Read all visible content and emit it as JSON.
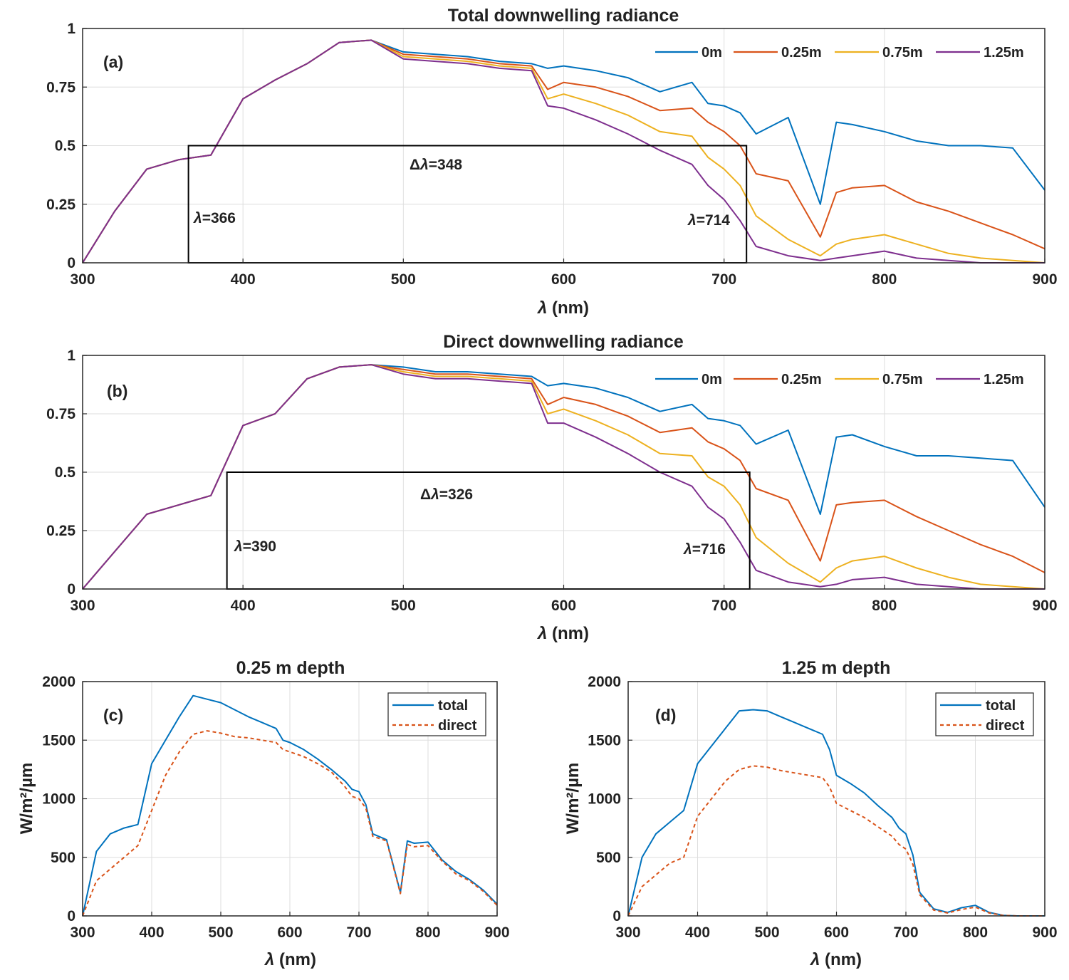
{
  "colors": {
    "c0m": "#0072BD",
    "c025": "#D95319",
    "c075": "#EDB120",
    "c125": "#7E2F8E"
  },
  "panels": {
    "a": {
      "title": "Total downwelling radiance",
      "label": "(a)",
      "xlabel_prefix": "λ",
      "xlabel_unit": " (nm)",
      "legend": [
        "0m",
        "0.25m",
        "0.75m",
        "1.25m"
      ],
      "yticks": [
        "0",
        "0.25",
        "0.5",
        "0.75",
        "1"
      ],
      "xticks": [
        "300",
        "400",
        "500",
        "600",
        "700",
        "800",
        "900"
      ],
      "ann_left_sym": "λ",
      "ann_left_val": "=366",
      "ann_right_sym": "λ",
      "ann_right_val": "=714",
      "ann_delta": "Δ",
      "ann_delta_sym": "λ",
      "ann_delta_val": "=348"
    },
    "b": {
      "title": "Direct downwelling radiance",
      "label": "(b)",
      "xlabel_prefix": "λ",
      "xlabel_unit": " (nm)",
      "legend": [
        "0m",
        "0.25m",
        "0.75m",
        "1.25m"
      ],
      "yticks": [
        "0",
        "0.25",
        "0.5",
        "0.75",
        "1"
      ],
      "xticks": [
        "300",
        "400",
        "500",
        "600",
        "700",
        "800",
        "900"
      ],
      "ann_left_sym": "λ",
      "ann_left_val": "=390",
      "ann_right_sym": "λ",
      "ann_right_val": "=716",
      "ann_delta": "Δ",
      "ann_delta_sym": "λ",
      "ann_delta_val": "=326"
    },
    "c": {
      "title": "0.25 m depth",
      "label": "(c)",
      "xlabel_prefix": "λ",
      "xlabel_unit": " (nm)",
      "ylabel": "W/m²/µm",
      "legend": [
        "total",
        "direct"
      ],
      "yticks": [
        "0",
        "500",
        "1000",
        "1500",
        "2000"
      ],
      "xticks": [
        "300",
        "400",
        "500",
        "600",
        "700",
        "800",
        "900"
      ]
    },
    "d": {
      "title": "1.25 m depth",
      "label": "(d)",
      "xlabel_prefix": "λ",
      "xlabel_unit": " (nm)",
      "ylabel": "W/m²/µm",
      "legend": [
        "total",
        "direct"
      ],
      "yticks": [
        "0",
        "500",
        "1000",
        "1500",
        "2000"
      ],
      "xticks": [
        "300",
        "400",
        "500",
        "600",
        "700",
        "800",
        "900"
      ]
    }
  },
  "chart_data": [
    {
      "type": "line",
      "panel": "a",
      "title": "Total downwelling radiance",
      "xlabel": "λ (nm)",
      "ylabel": "",
      "xlim": [
        300,
        900
      ],
      "ylim": [
        0,
        1
      ],
      "grid": true,
      "legend_position": "top-right",
      "x": [
        300,
        320,
        340,
        360,
        380,
        400,
        420,
        440,
        460,
        480,
        500,
        520,
        540,
        560,
        580,
        590,
        600,
        620,
        640,
        660,
        680,
        690,
        700,
        710,
        720,
        740,
        760,
        770,
        780,
        800,
        820,
        840,
        860,
        880,
        900
      ],
      "series": [
        {
          "name": "0m",
          "values": [
            0,
            0.22,
            0.4,
            0.44,
            0.46,
            0.7,
            0.78,
            0.85,
            0.94,
            0.95,
            0.9,
            0.89,
            0.88,
            0.86,
            0.85,
            0.83,
            0.84,
            0.82,
            0.79,
            0.73,
            0.77,
            0.68,
            0.67,
            0.64,
            0.55,
            0.62,
            0.25,
            0.6,
            0.59,
            0.56,
            0.52,
            0.5,
            0.5,
            0.49,
            0.31
          ]
        },
        {
          "name": "0.25m",
          "values": [
            0,
            0.22,
            0.4,
            0.44,
            0.46,
            0.7,
            0.78,
            0.85,
            0.94,
            0.95,
            0.89,
            0.88,
            0.87,
            0.85,
            0.84,
            0.74,
            0.77,
            0.75,
            0.71,
            0.65,
            0.66,
            0.6,
            0.56,
            0.5,
            0.38,
            0.35,
            0.11,
            0.3,
            0.32,
            0.33,
            0.26,
            0.22,
            0.17,
            0.12,
            0.06
          ]
        },
        {
          "name": "0.75m",
          "values": [
            0,
            0.22,
            0.4,
            0.44,
            0.46,
            0.7,
            0.78,
            0.85,
            0.94,
            0.95,
            0.88,
            0.87,
            0.86,
            0.84,
            0.83,
            0.7,
            0.72,
            0.68,
            0.63,
            0.56,
            0.54,
            0.45,
            0.4,
            0.33,
            0.2,
            0.1,
            0.03,
            0.08,
            0.1,
            0.12,
            0.08,
            0.04,
            0.02,
            0.01,
            0
          ]
        },
        {
          "name": "1.25m",
          "values": [
            0,
            0.22,
            0.4,
            0.44,
            0.46,
            0.7,
            0.78,
            0.85,
            0.94,
            0.95,
            0.87,
            0.86,
            0.85,
            0.83,
            0.82,
            0.67,
            0.66,
            0.61,
            0.55,
            0.48,
            0.42,
            0.33,
            0.27,
            0.18,
            0.07,
            0.03,
            0.01,
            0.02,
            0.03,
            0.05,
            0.02,
            0.01,
            0,
            0,
            0
          ]
        }
      ],
      "annotations": [
        {
          "text": "λ=366",
          "x": 366
        },
        {
          "text": "λ=714",
          "x": 714
        },
        {
          "text": "Δλ=348",
          "x": 540,
          "y": 0.42
        }
      ],
      "rectangle": {
        "x0": 366,
        "x1": 714,
        "y0": 0,
        "y1": 0.5
      }
    },
    {
      "type": "line",
      "panel": "b",
      "title": "Direct downwelling radiance",
      "xlabel": "λ (nm)",
      "ylabel": "",
      "xlim": [
        300,
        900
      ],
      "ylim": [
        0,
        1
      ],
      "grid": true,
      "legend_position": "top-right",
      "x": [
        300,
        320,
        340,
        360,
        380,
        400,
        420,
        440,
        460,
        480,
        500,
        520,
        540,
        560,
        580,
        590,
        600,
        620,
        640,
        660,
        680,
        690,
        700,
        710,
        720,
        740,
        760,
        770,
        780,
        800,
        820,
        840,
        860,
        880,
        900
      ],
      "series": [
        {
          "name": "0m",
          "values": [
            0,
            0.16,
            0.32,
            0.36,
            0.4,
            0.7,
            0.75,
            0.9,
            0.95,
            0.96,
            0.95,
            0.93,
            0.93,
            0.92,
            0.91,
            0.87,
            0.88,
            0.86,
            0.82,
            0.76,
            0.79,
            0.73,
            0.72,
            0.7,
            0.62,
            0.68,
            0.32,
            0.65,
            0.66,
            0.61,
            0.57,
            0.57,
            0.56,
            0.55,
            0.35
          ]
        },
        {
          "name": "0.25m",
          "values": [
            0,
            0.16,
            0.32,
            0.36,
            0.4,
            0.7,
            0.75,
            0.9,
            0.95,
            0.96,
            0.94,
            0.92,
            0.92,
            0.91,
            0.9,
            0.79,
            0.82,
            0.79,
            0.74,
            0.67,
            0.69,
            0.63,
            0.6,
            0.55,
            0.43,
            0.38,
            0.12,
            0.36,
            0.37,
            0.38,
            0.31,
            0.25,
            0.19,
            0.14,
            0.07
          ]
        },
        {
          "name": "0.75m",
          "values": [
            0,
            0.16,
            0.32,
            0.36,
            0.4,
            0.7,
            0.75,
            0.9,
            0.95,
            0.96,
            0.93,
            0.91,
            0.91,
            0.9,
            0.89,
            0.75,
            0.77,
            0.72,
            0.66,
            0.58,
            0.57,
            0.48,
            0.44,
            0.36,
            0.22,
            0.11,
            0.03,
            0.09,
            0.12,
            0.14,
            0.09,
            0.05,
            0.02,
            0.01,
            0
          ]
        },
        {
          "name": "1.25m",
          "values": [
            0,
            0.16,
            0.32,
            0.36,
            0.4,
            0.7,
            0.75,
            0.9,
            0.95,
            0.96,
            0.92,
            0.9,
            0.9,
            0.89,
            0.88,
            0.71,
            0.71,
            0.65,
            0.58,
            0.5,
            0.44,
            0.35,
            0.3,
            0.2,
            0.08,
            0.03,
            0.01,
            0.02,
            0.04,
            0.05,
            0.02,
            0.01,
            0,
            0,
            0
          ]
        }
      ],
      "annotations": [
        {
          "text": "λ=390",
          "x": 390
        },
        {
          "text": "λ=716",
          "x": 716
        },
        {
          "text": "Δλ=326",
          "x": 550,
          "y": 0.4
        }
      ],
      "rectangle": {
        "x0": 390,
        "x1": 716,
        "y0": 0,
        "y1": 0.5
      }
    },
    {
      "type": "line",
      "panel": "c",
      "title": "0.25 m depth",
      "xlabel": "λ (nm)",
      "ylabel": "W/m²/µm",
      "xlim": [
        300,
        900
      ],
      "ylim": [
        0,
        2000
      ],
      "grid": true,
      "legend_position": "top-right",
      "x": [
        300,
        320,
        340,
        360,
        380,
        400,
        420,
        440,
        460,
        480,
        500,
        520,
        540,
        560,
        580,
        590,
        600,
        620,
        640,
        660,
        680,
        690,
        700,
        710,
        720,
        740,
        760,
        770,
        780,
        800,
        820,
        840,
        860,
        880,
        900
      ],
      "series": [
        {
          "name": "total",
          "values": [
            0,
            550,
            700,
            750,
            780,
            1300,
            1500,
            1700,
            1880,
            1850,
            1820,
            1760,
            1700,
            1650,
            1600,
            1500,
            1480,
            1420,
            1340,
            1250,
            1150,
            1080,
            1060,
            950,
            700,
            650,
            200,
            640,
            620,
            630,
            480,
            380,
            310,
            220,
            100
          ]
        },
        {
          "name": "direct",
          "values": [
            0,
            300,
            400,
            500,
            600,
            900,
            1200,
            1400,
            1550,
            1580,
            1560,
            1530,
            1520,
            1500,
            1480,
            1420,
            1400,
            1360,
            1300,
            1230,
            1100,
            1020,
            1000,
            920,
            680,
            640,
            190,
            610,
            590,
            600,
            470,
            360,
            300,
            210,
            90
          ]
        }
      ]
    },
    {
      "type": "line",
      "panel": "d",
      "title": "1.25 m depth",
      "xlabel": "λ (nm)",
      "ylabel": "W/m²/µm",
      "xlim": [
        300,
        900
      ],
      "ylim": [
        0,
        2000
      ],
      "grid": true,
      "legend_position": "top-right",
      "x": [
        300,
        320,
        340,
        360,
        380,
        400,
        420,
        440,
        460,
        480,
        500,
        520,
        540,
        560,
        580,
        590,
        600,
        620,
        640,
        660,
        680,
        690,
        700,
        710,
        720,
        740,
        760,
        770,
        780,
        800,
        820,
        840,
        860,
        880,
        900
      ],
      "series": [
        {
          "name": "total",
          "values": [
            0,
            500,
            700,
            800,
            900,
            1300,
            1450,
            1600,
            1750,
            1760,
            1750,
            1700,
            1650,
            1600,
            1550,
            1420,
            1200,
            1130,
            1050,
            940,
            840,
            750,
            700,
            520,
            200,
            60,
            30,
            50,
            70,
            90,
            30,
            5,
            0,
            0,
            0
          ]
        },
        {
          "name": "direct",
          "values": [
            0,
            250,
            350,
            450,
            500,
            850,
            1000,
            1150,
            1250,
            1280,
            1270,
            1240,
            1220,
            1200,
            1180,
            1100,
            960,
            900,
            840,
            760,
            680,
            610,
            570,
            440,
            180,
            50,
            25,
            40,
            55,
            75,
            25,
            4,
            0,
            0,
            0
          ]
        }
      ]
    }
  ]
}
